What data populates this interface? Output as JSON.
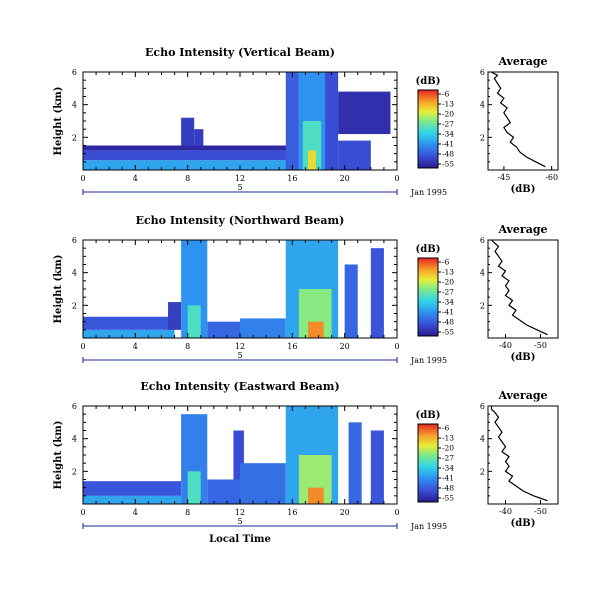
{
  "chart_data": [
    {
      "type": "heatmap",
      "title": "Echo Intensity (Vertical Beam)",
      "ylabel": "Height (km)",
      "yticks": [
        "2",
        "4",
        "6"
      ],
      "ylim": [
        0,
        6
      ],
      "xticks": [
        "0",
        "4",
        "8",
        "12",
        "16",
        "20",
        "0"
      ],
      "xlim": [
        0,
        24
      ],
      "date_tick": "5",
      "date_label": "Jan 1995",
      "colorbar": {
        "unit": "(dB)",
        "ticks": [
          "-6",
          "-13",
          "-20",
          "-27",
          "-34",
          "-41",
          "-48",
          "-55"
        ]
      },
      "cells": [
        {
          "t0": 0,
          "t1": 16,
          "h0": 0,
          "h1": 0.6,
          "db": -38
        },
        {
          "t0": 0,
          "t1": 16,
          "h0": 0.6,
          "h1": 1.2,
          "db": -48
        },
        {
          "t0": 0,
          "t1": 16,
          "h0": 1.2,
          "h1": 1.5,
          "db": -53
        },
        {
          "t0": 7.5,
          "t1": 8.5,
          "h0": 1.5,
          "h1": 3.2,
          "db": -50
        },
        {
          "t0": 8.5,
          "t1": 9.2,
          "h0": 1.5,
          "h1": 2.5,
          "db": -50
        },
        {
          "t0": 15.5,
          "t1": 16.5,
          "h0": 0,
          "h1": 6,
          "db": -46
        },
        {
          "t0": 16.5,
          "t1": 18.5,
          "h0": 0,
          "h1": 6,
          "db": -40
        },
        {
          "t0": 16.8,
          "t1": 18.2,
          "h0": 0,
          "h1": 3,
          "db": -30
        },
        {
          "t0": 17.2,
          "t1": 17.8,
          "h0": 0,
          "h1": 1.2,
          "db": -18
        },
        {
          "t0": 18.5,
          "t1": 19.5,
          "h0": 0,
          "h1": 6,
          "db": -48
        },
        {
          "t0": 19.5,
          "t1": 22,
          "h0": 0,
          "h1": 1.8,
          "db": -48
        },
        {
          "t0": 19.5,
          "t1": 23.5,
          "h0": 2.2,
          "h1": 4.8,
          "db": -52
        }
      ]
    },
    {
      "type": "heatmap",
      "title": "Echo Intensity (Northward Beam)",
      "ylabel": "Height (km)",
      "yticks": [
        "2",
        "4",
        "6"
      ],
      "ylim": [
        0,
        6
      ],
      "xticks": [
        "0",
        "4",
        "8",
        "12",
        "16",
        "20",
        "0"
      ],
      "xlim": [
        0,
        24
      ],
      "date_tick": "5",
      "date_label": "Jan 1995",
      "colorbar": {
        "unit": "(dB)",
        "ticks": [
          "-6",
          "-13",
          "-20",
          "-27",
          "-34",
          "-41",
          "-48",
          "-55"
        ]
      },
      "cells": [
        {
          "t0": 0,
          "t1": 7,
          "h0": 0,
          "h1": 0.5,
          "db": -38
        },
        {
          "t0": 0,
          "t1": 7,
          "h0": 0.5,
          "h1": 1.3,
          "db": -47
        },
        {
          "t0": 6.5,
          "t1": 7.5,
          "h0": 0.5,
          "h1": 2.2,
          "db": -50
        },
        {
          "t0": 7.5,
          "t1": 9.5,
          "h0": 0,
          "h1": 6,
          "db": -40
        },
        {
          "t0": 8,
          "t1": 9,
          "h0": 0,
          "h1": 2,
          "db": -30
        },
        {
          "t0": 9.5,
          "t1": 12,
          "h0": 0,
          "h1": 1.0,
          "db": -45
        },
        {
          "t0": 12,
          "t1": 15.5,
          "h0": 0,
          "h1": 1.2,
          "db": -42
        },
        {
          "t0": 15.5,
          "t1": 19.5,
          "h0": 0,
          "h1": 6,
          "db": -38
        },
        {
          "t0": 16.5,
          "t1": 19,
          "h0": 0,
          "h1": 3,
          "db": -25
        },
        {
          "t0": 17.2,
          "t1": 18.4,
          "h0": 0,
          "h1": 1.0,
          "db": -12
        },
        {
          "t0": 20,
          "t1": 21,
          "h0": 0,
          "h1": 4.5,
          "db": -45
        },
        {
          "t0": 22,
          "t1": 23,
          "h0": 0,
          "h1": 5.5,
          "db": -47
        }
      ]
    },
    {
      "type": "heatmap",
      "title": "Echo Intensity (Eastward Beam)",
      "ylabel": "Height (km)",
      "yticks": [
        "2",
        "4",
        "6"
      ],
      "ylim": [
        0,
        6
      ],
      "xticks": [
        "0",
        "4",
        "8",
        "12",
        "16",
        "20",
        "0"
      ],
      "xlim": [
        0,
        24
      ],
      "date_tick": "5",
      "date_label": "Jan 1995",
      "xlabel": "Local Time",
      "colorbar": {
        "unit": "(dB)",
        "ticks": [
          "-6",
          "-13",
          "-20",
          "-27",
          "-34",
          "-41",
          "-48",
          "-55"
        ]
      },
      "cells": [
        {
          "t0": 0,
          "t1": 7.5,
          "h0": 0,
          "h1": 0.5,
          "db": -38
        },
        {
          "t0": 0,
          "t1": 7.5,
          "h0": 0.5,
          "h1": 1.4,
          "db": -47
        },
        {
          "t0": 7.5,
          "t1": 9.5,
          "h0": 0,
          "h1": 5.5,
          "db": -42
        },
        {
          "t0": 8,
          "t1": 9,
          "h0": 0,
          "h1": 2,
          "db": -30
        },
        {
          "t0": 9.5,
          "t1": 12,
          "h0": 0,
          "h1": 1.5,
          "db": -45
        },
        {
          "t0": 11.5,
          "t1": 12.3,
          "h0": 1.5,
          "h1": 4.5,
          "db": -48
        },
        {
          "t0": 12,
          "t1": 15.5,
          "h0": 0,
          "h1": 2.5,
          "db": -44
        },
        {
          "t0": 15.5,
          "t1": 19.5,
          "h0": 0,
          "h1": 6,
          "db": -38
        },
        {
          "t0": 16.5,
          "t1": 19,
          "h0": 0,
          "h1": 3,
          "db": -24
        },
        {
          "t0": 17.2,
          "t1": 18.4,
          "h0": 0,
          "h1": 1.0,
          "db": -12
        },
        {
          "t0": 20.3,
          "t1": 21.3,
          "h0": 0,
          "h1": 5,
          "db": -45
        },
        {
          "t0": 22,
          "t1": 23,
          "h0": 0,
          "h1": 4.5,
          "db": -47
        }
      ]
    },
    {
      "type": "line",
      "title": "Average",
      "xlabel": "(dB)",
      "xticks": [
        "-45",
        "-60"
      ],
      "xlim": [
        -40,
        -62
      ],
      "yticks": [
        "2",
        "4",
        "6"
      ],
      "ylim": [
        0,
        6
      ],
      "x": [
        -58,
        -55,
        -52,
        -50,
        -49,
        -47,
        -48,
        -46,
        -45,
        -47,
        -46,
        -45,
        -46,
        -44,
        -45,
        -43,
        -44,
        -43,
        -42,
        -43,
        -41
      ],
      "y": [
        0.2,
        0.5,
        0.8,
        1.1,
        1.4,
        1.7,
        2.0,
        2.3,
        2.6,
        2.9,
        3.2,
        3.5,
        3.8,
        4.1,
        4.4,
        4.7,
        5.0,
        5.3,
        5.6,
        5.8,
        6.0
      ]
    },
    {
      "type": "line",
      "title": "Average",
      "xlabel": "(dB)",
      "xticks": [
        "-40",
        "-50"
      ],
      "xlim": [
        -35,
        -55
      ],
      "yticks": [
        "2",
        "4",
        "6"
      ],
      "ylim": [
        0,
        6
      ],
      "x": [
        -52,
        -49,
        -46,
        -44,
        -42,
        -43,
        -41,
        -42,
        -40,
        -41,
        -40,
        -41,
        -39,
        -40,
        -38,
        -39,
        -38,
        -37,
        -38,
        -37,
        -36
      ],
      "y": [
        0.2,
        0.5,
        0.8,
        1.1,
        1.4,
        1.7,
        2.0,
        2.3,
        2.6,
        2.9,
        3.2,
        3.5,
        3.8,
        4.1,
        4.4,
        4.7,
        5.0,
        5.3,
        5.6,
        5.8,
        6.0
      ]
    },
    {
      "type": "line",
      "title": "Average",
      "xlabel": "(dB)",
      "xticks": [
        "-40",
        "-50"
      ],
      "xlim": [
        -35,
        -55
      ],
      "yticks": [
        "2",
        "4",
        "6"
      ],
      "ylim": [
        0,
        6
      ],
      "x": [
        -52,
        -48,
        -45,
        -43,
        -41,
        -42,
        -40,
        -41,
        -40,
        -41,
        -39,
        -40,
        -39,
        -38,
        -39,
        -38,
        -37,
        -38,
        -37,
        -36,
        -36
      ],
      "y": [
        0.2,
        0.5,
        0.8,
        1.1,
        1.4,
        1.7,
        2.0,
        2.3,
        2.6,
        2.9,
        3.2,
        3.5,
        3.8,
        4.1,
        4.4,
        4.7,
        5.0,
        5.3,
        5.6,
        5.8,
        6.0
      ]
    }
  ]
}
